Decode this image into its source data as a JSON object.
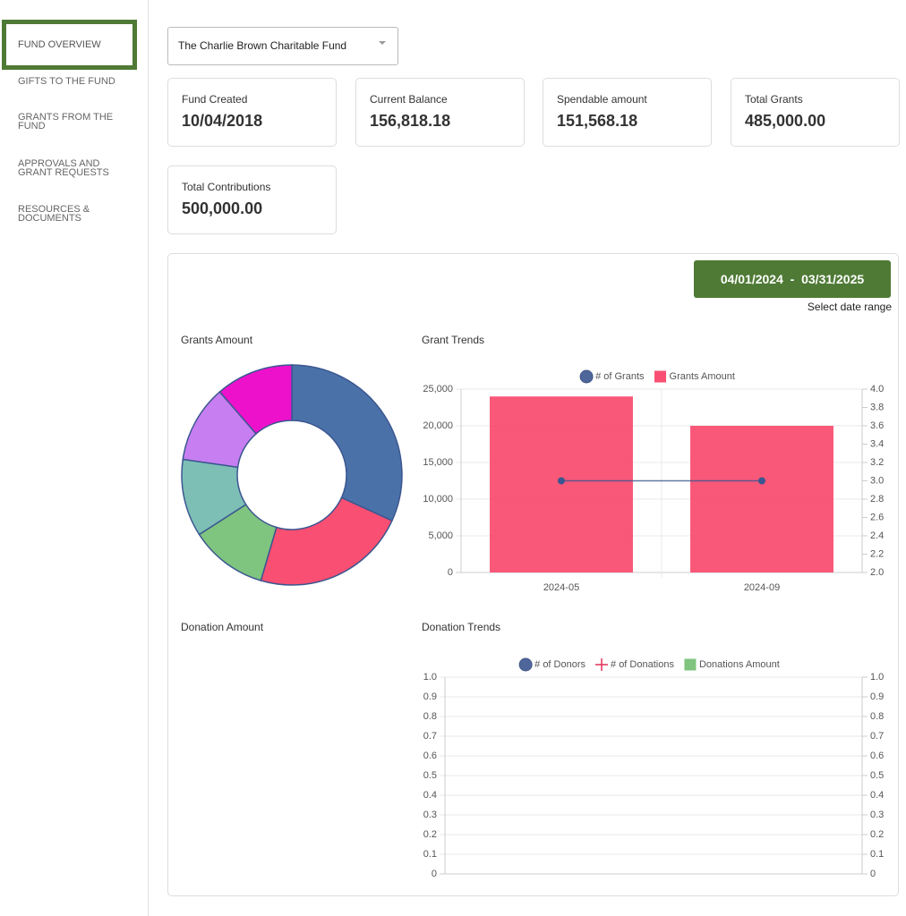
{
  "nav": {
    "items": [
      "FUND OVERVIEW",
      "GIFTS TO THE FUND",
      "GRANTS FROM THE FUND",
      "APPROVALS AND GRANT REQUESTS",
      "RESOURCES & DOCUMENTS"
    ]
  },
  "fund_select": "The Charlie Brown Charitable Fund",
  "stats": [
    {
      "label": "Fund Created",
      "value": "10/04/2018"
    },
    {
      "label": "Current Balance",
      "value": "156,818.18"
    },
    {
      "label": "Spendable amount",
      "value": "151,568.18"
    },
    {
      "label": "Total Grants",
      "value": "485,000.00"
    },
    {
      "label": "Total Contributions",
      "value": "500,000.00"
    }
  ],
  "date_range": {
    "button": "04/01/2024  -  03/31/2025",
    "hint": "Select date range"
  },
  "chart_data": [
    {
      "type": "pie",
      "title": "Grants Amount",
      "donut": true,
      "values": [
        14000,
        10000,
        5000,
        5000,
        5000,
        5000
      ],
      "colors": [
        "#4a72a8",
        "#f94f72",
        "#7fc47f",
        "#7dbfb5",
        "#c77ef0",
        "#ee11cc"
      ]
    },
    {
      "type": "combo",
      "title": "Grant Trends",
      "categories": [
        "2024-05",
        "2024-09"
      ],
      "series": [
        {
          "name": "# of Grants",
          "type": "line",
          "point": "circle",
          "color": "#3b5690",
          "axis": "y2",
          "values": [
            3,
            3
          ]
        },
        {
          "name": "Grants Amount",
          "type": "bar",
          "point": "square",
          "color": "#f94f72",
          "values": [
            24000,
            20000
          ]
        }
      ],
      "ylim": [
        0,
        25000
      ],
      "yticks": [
        0,
        {
          "value": 5000,
          "label": "5,000"
        },
        {
          "value": 10000,
          "label": "10,000"
        },
        {
          "value": 15000,
          "label": "15,000"
        },
        {
          "value": 20000,
          "label": "20,000"
        },
        {
          "value": 25000,
          "label": "25,000"
        }
      ],
      "y2lim": [
        2,
        4
      ],
      "y2ticks": [
        {
          "value": 2,
          "label": "2.0"
        },
        2.2,
        2.4,
        2.6,
        2.8,
        {
          "value": 3,
          "label": "3.0"
        },
        3.2,
        3.4,
        3.6,
        3.8,
        {
          "value": 4,
          "label": "4.0"
        }
      ],
      "grid": true,
      "legend": "top"
    },
    {
      "type": "pie",
      "title": "Donation Amount",
      "donut": true,
      "values": [],
      "colors": []
    },
    {
      "type": "combo",
      "title": "Donation Trends",
      "categories": [],
      "series": [
        {
          "name": "# of Donors",
          "type": "line",
          "point": "circle",
          "color": "#3b5690",
          "values": []
        },
        {
          "name": "# of Donations",
          "type": "line",
          "point": "cross",
          "color": "#e0315a",
          "values": []
        },
        {
          "name": "Donations Amount",
          "type": "bar",
          "point": "square",
          "color": "#7fc47f",
          "values": []
        }
      ],
      "ylim": [
        0,
        1
      ],
      "yticks": [
        0,
        0.1,
        0.2,
        0.3,
        0.4,
        0.5,
        0.6,
        0.7,
        0.8,
        0.9,
        {
          "value": 1,
          "label": "1.0"
        }
      ],
      "y2lim": [
        0,
        1
      ],
      "y2ticks": [
        0,
        0.1,
        0.2,
        0.3,
        0.4,
        0.5,
        0.6,
        0.7,
        0.8,
        0.9,
        {
          "value": 1,
          "label": "1.0"
        }
      ],
      "grid": true,
      "legend": "top"
    }
  ]
}
